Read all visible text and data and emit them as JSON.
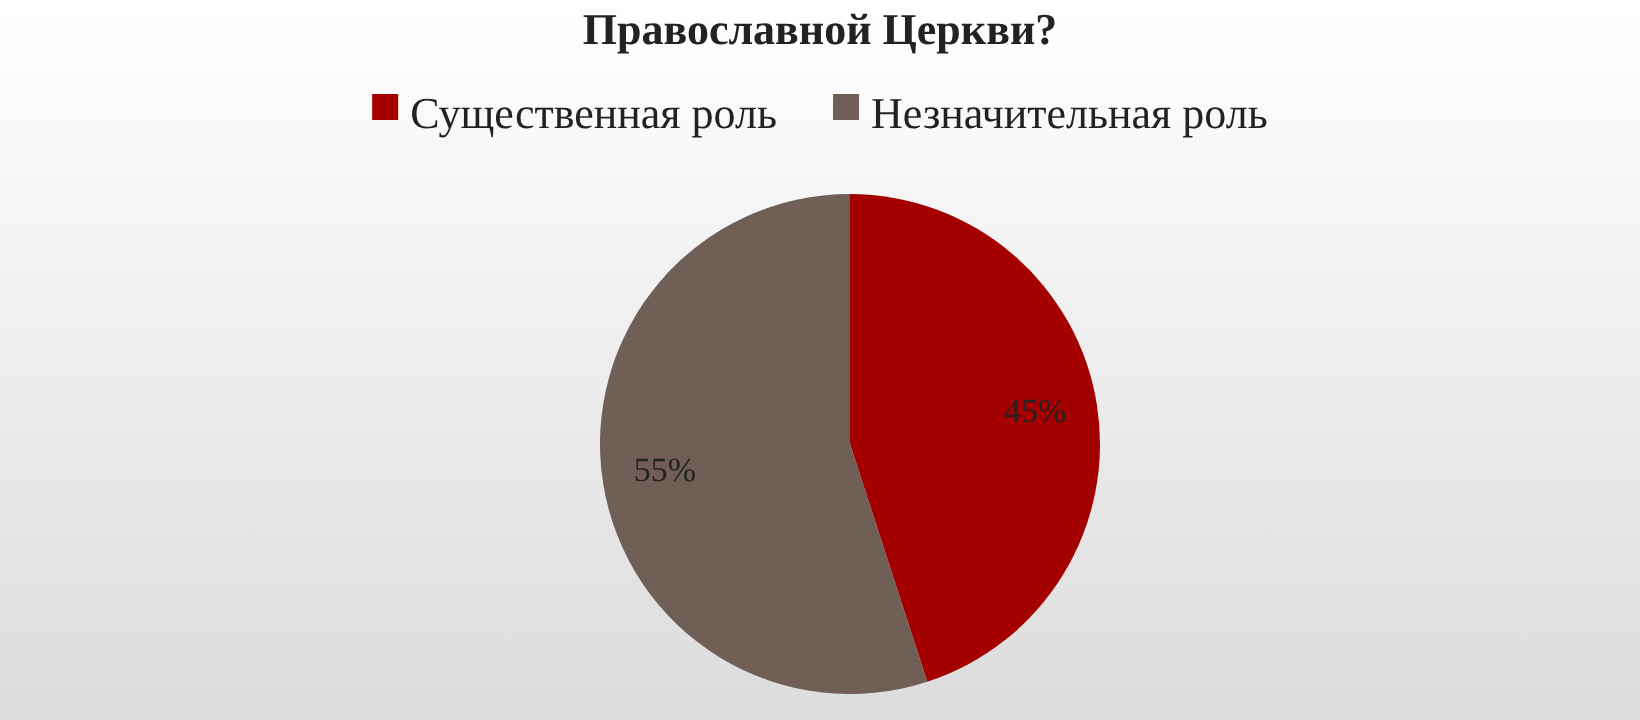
{
  "chart_data": {
    "type": "pie",
    "title": "Православной Церкви?",
    "categories": [
      "Существенная роль",
      "Незначительная роль"
    ],
    "values": [
      45,
      55
    ],
    "colors": [
      "#a50000",
      "#6f5f57"
    ],
    "value_labels": [
      "45%",
      "55%"
    ],
    "legend": "top"
  }
}
